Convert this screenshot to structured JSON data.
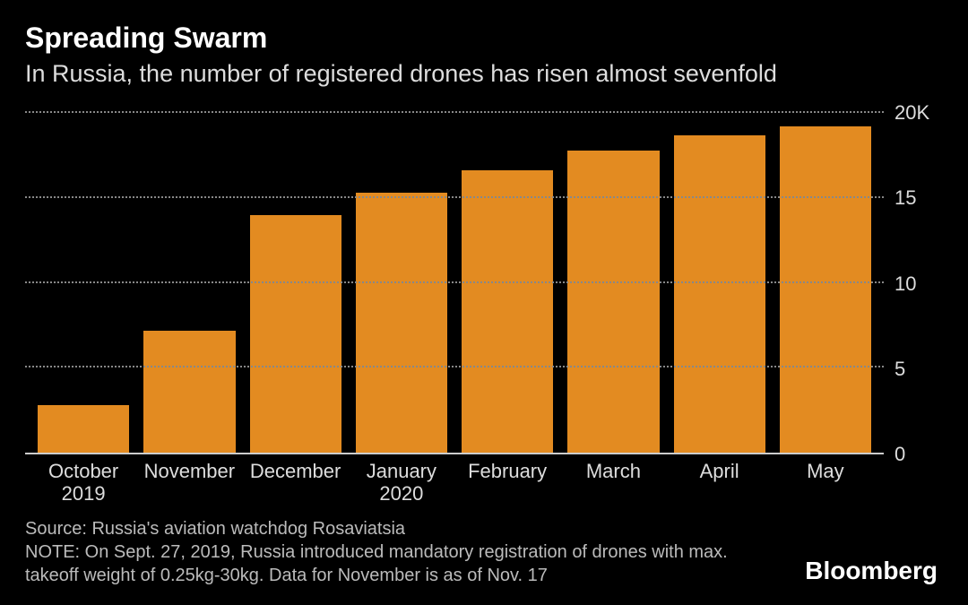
{
  "chart": {
    "type": "bar",
    "title": "Spreading Swarm",
    "subtitle": "In Russia, the number of registered drones has risen almost sevenfold",
    "background_color": "#000000",
    "text_color": "#ffffff",
    "subtext_color": "#dddddd",
    "title_fontsize": 32,
    "subtitle_fontsize": 27,
    "axis_label_fontsize": 22,
    "grid_color": "#888888",
    "grid_style": "dotted",
    "axis_line_color": "#cccccc",
    "bar_color": "#e38b21",
    "bar_width_ratio": 0.82,
    "categories": [
      "October\n2019",
      "November",
      "December",
      "January\n2020",
      "February",
      "March",
      "April",
      "May"
    ],
    "values": [
      2800,
      7200,
      14000,
      15300,
      16600,
      17800,
      18700,
      19200
    ],
    "ylim": [
      0,
      20000
    ],
    "yticks": [
      0,
      5000,
      10000,
      15000,
      20000
    ],
    "ytick_labels": [
      "0",
      "5",
      "10",
      "15",
      "20K"
    ]
  },
  "footer": {
    "source": "Source: Russia's aviation watchdog Rosaviatsia",
    "note": "NOTE: On Sept. 27, 2019, Russia introduced mandatory registration of drones with max. takeoff weight of 0.25kg-30kg. Data for November is as of Nov. 17",
    "fontsize": 20,
    "color": "#bbbbbb"
  },
  "brand": {
    "label": "Bloomberg",
    "fontsize": 28,
    "color": "#ffffff"
  }
}
